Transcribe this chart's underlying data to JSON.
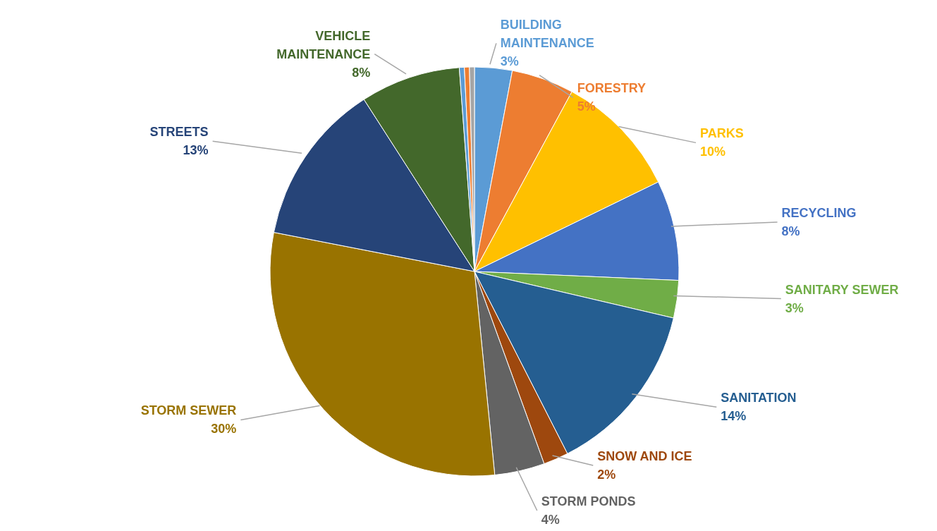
{
  "chart_data": {
    "type": "pie",
    "categories": [
      "BUILDING MAINTENANCE",
      "FORESTRY",
      "PARKS",
      "RECYCLING",
      "SANITARY SEWER",
      "SANITATION",
      "SNOW AND ICE",
      "STORM PONDS",
      "STORM SEWER",
      "STREETS",
      "VEHICLE MAINTENANCE",
      null,
      null,
      null
    ],
    "values": [
      3,
      5,
      10,
      8,
      3,
      14,
      2,
      4,
      30,
      13,
      8,
      0.4,
      0.4,
      0.4
    ],
    "value_labels": [
      "3%",
      "5%",
      "10%",
      "8%",
      "3%",
      "14%",
      "2%",
      "4%",
      "30%",
      "13%",
      "8%",
      null,
      null,
      null
    ],
    "colors": [
      "#5b9bd5",
      "#ed7d31",
      "#ffc000",
      "#4472c4",
      "#70ad47",
      "#255e91",
      "#9e480e",
      "#636363",
      "#997300",
      "#264478",
      "#43682b",
      "#5b9bd5",
      "#ed7d31",
      "#a5a5a5"
    ],
    "legend": false
  }
}
